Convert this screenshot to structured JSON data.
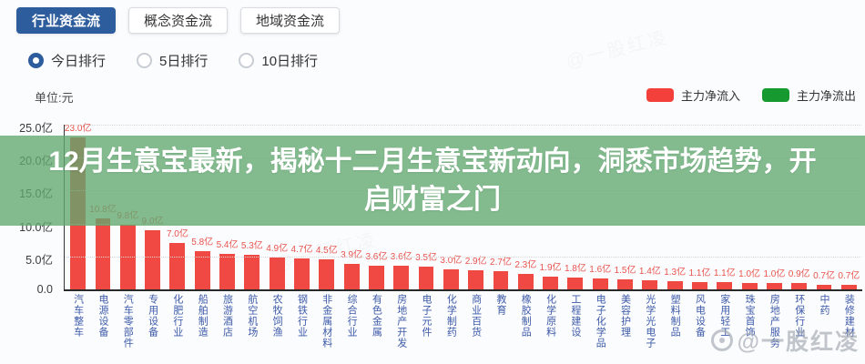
{
  "tabs": [
    {
      "label": "行业资金流",
      "active": true
    },
    {
      "label": "概念资金流",
      "active": false
    },
    {
      "label": "地域资金流",
      "active": false
    }
  ],
  "ranking_options": [
    {
      "label": "今日排行",
      "selected": true
    },
    {
      "label": "5日排行",
      "selected": false
    },
    {
      "label": "10日排行",
      "selected": false
    }
  ],
  "unit_label": "单位:元",
  "legend": [
    {
      "label": "主力净流入",
      "color": "#f4403a"
    },
    {
      "label": "主力净流出",
      "color": "#169a2f"
    }
  ],
  "overlay": {
    "lines": [
      "12月生意宝最新，揭秘十二月生意宝新动向，洞悉市场趋势，开",
      "启财富之门"
    ],
    "full_text": "12月生意宝最新，揭秘十二月生意宝新动向，洞悉市场趋势，开启财富之门",
    "background_color": "#61a870"
  },
  "watermark": {
    "text": "@一股红凌"
  },
  "chart_data": {
    "type": "bar",
    "title": "",
    "xlabel": "",
    "ylabel": "单位:元",
    "ylim": [
      0,
      25
    ],
    "grid": "dotted-horizontal",
    "legend_position": "top-right",
    "bar_color": "#f04843",
    "yticks": [
      "25.0亿",
      "20.0亿",
      "15.0亿",
      "10.0亿",
      "5.0亿",
      "0.0"
    ],
    "categories": [
      "汽车整车",
      "电源设备",
      "汽车零部件",
      "专用设备",
      "化肥行业",
      "船舶制造",
      "旅游酒店",
      "航空机场",
      "农牧饲渔",
      "钢铁行业",
      "非金属材料",
      "综合行业",
      "有色金属",
      "房地产开发",
      "电子元件",
      "化学制药",
      "商业百货",
      "教育",
      "橡胶制品",
      "化学原料",
      "工程建设",
      "电子化学品",
      "美容护理",
      "光学光电子",
      "塑料制品",
      "风电设备",
      "家用轻工",
      "珠宝首饰",
      "房地产服务",
      "环保行业",
      "中药",
      "装修建材"
    ],
    "values": [
      23.0,
      10.8,
      9.8,
      9.0,
      7.0,
      5.8,
      5.4,
      5.3,
      4.9,
      4.7,
      4.5,
      3.9,
      3.6,
      3.6,
      3.5,
      3.0,
      2.9,
      2.7,
      2.3,
      1.9,
      1.8,
      1.6,
      1.5,
      1.4,
      1.3,
      1.1,
      1.1,
      1.0,
      1.0,
      0.9,
      0.7,
      0.7
    ],
    "value_labels": [
      "23.0亿",
      "10.8亿",
      "9.8亿",
      "9.0亿",
      "7.0亿",
      "5.8亿",
      "5.4亿",
      "5.3亿",
      "4.9亿",
      "4.7亿",
      "4.5亿",
      "3.9亿",
      "3.6亿",
      "3.6亿",
      "3.5亿",
      "3.0亿",
      "2.9亿",
      "2.7亿",
      "2.3亿",
      "1.9亿",
      "1.8亿",
      "1.6亿",
      "1.5亿",
      "1.4亿",
      "1.3亿",
      "1.1亿",
      "1.1亿",
      "1.0亿",
      "1.0亿",
      "0.9亿",
      "0.7亿",
      "0.7亿"
    ],
    "series_name": "主力净流入"
  }
}
